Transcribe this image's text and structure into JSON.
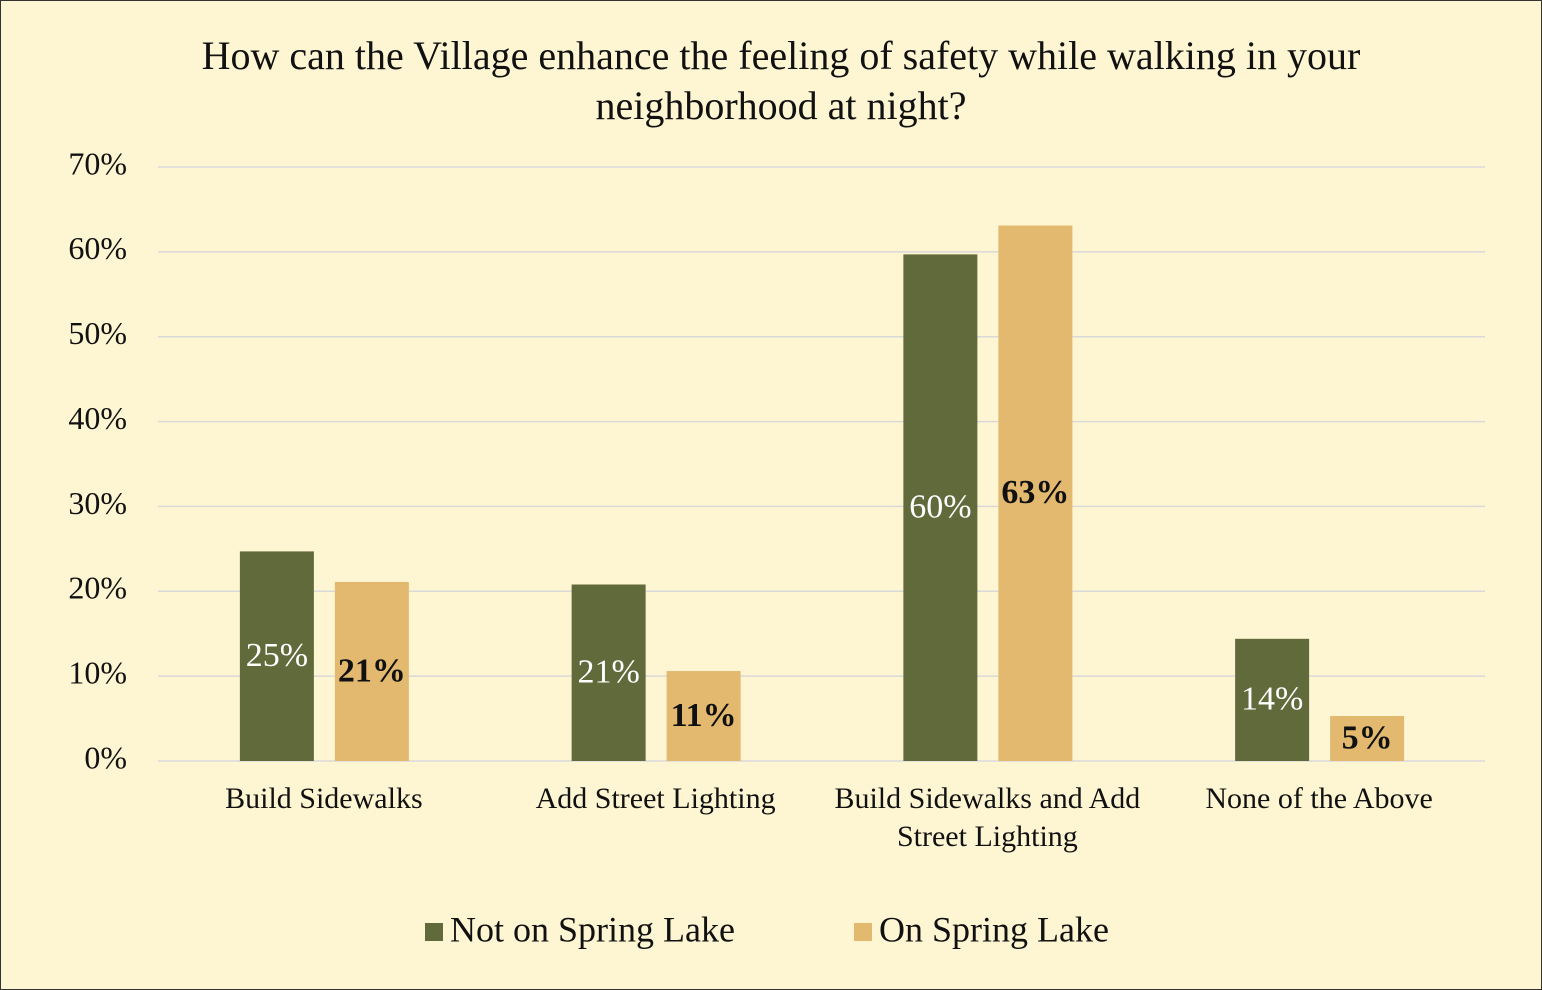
{
  "chart_data": {
    "type": "bar",
    "title": "How can the Village enhance the feeling of safety while walking in your neighborhood at night?",
    "categories": [
      "Build Sidewalks",
      "Add Street Lighting",
      "Build Sidewalks and Add Street Lighting",
      "None of the Above"
    ],
    "series": [
      {
        "name": "Not on Spring Lake",
        "color": "#616a3a",
        "values": [
          24.7,
          20.8,
          59.7,
          14.4
        ],
        "value_labels": [
          "25%",
          "21%",
          "60%",
          "14%"
        ]
      },
      {
        "name": "On Spring Lake",
        "color": "#e2b96e",
        "values": [
          21.1,
          10.6,
          63.1,
          5.3
        ],
        "value_labels": [
          "21%",
          "11%",
          "63%",
          "5%"
        ]
      }
    ],
    "ylim": [
      0,
      70
    ],
    "yticks": [
      {
        "value": 0,
        "label": "0%"
      },
      {
        "value": 10,
        "label": "10%"
      },
      {
        "value": 20,
        "label": "20%"
      },
      {
        "value": 30,
        "label": "30%"
      },
      {
        "value": 40,
        "label": "40%"
      },
      {
        "value": 50,
        "label": "50%"
      },
      {
        "value": 60,
        "label": "60%"
      },
      {
        "value": 70,
        "label": "70%"
      }
    ],
    "grid": true,
    "legend": "bottom"
  }
}
